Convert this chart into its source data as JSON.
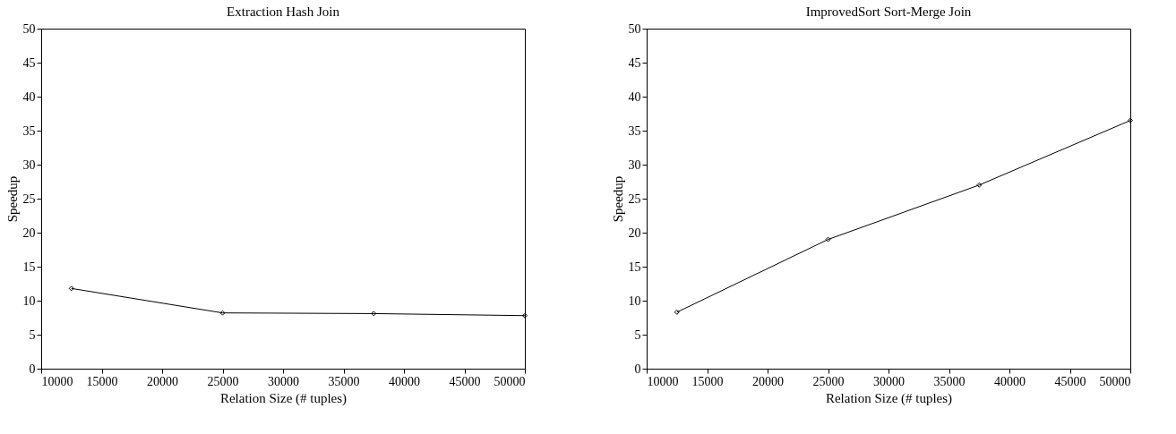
{
  "chart_data": [
    {
      "type": "line",
      "title": "Extraction Hash Join",
      "xlabel": "Relation Size (# tuples)",
      "ylabel": "Speedup",
      "x": [
        12500,
        25000,
        37500,
        50000
      ],
      "series": [
        {
          "color": "#000000",
          "values": [
            11.8,
            8.2,
            8.1,
            7.8
          ]
        }
      ],
      "xlim": [
        10000,
        50000
      ],
      "xticks": [
        10000,
        15000,
        20000,
        25000,
        30000,
        35000,
        40000,
        45000,
        50000
      ],
      "ylim": [
        0,
        50
      ],
      "yticks": [
        0,
        5,
        10,
        15,
        20,
        25,
        30,
        35,
        40,
        45,
        50
      ],
      "grid": false,
      "legend": false,
      "marker": "diamond",
      "line_style": "solid"
    },
    {
      "type": "line",
      "title": "ImprovedSort Sort-Merge Join",
      "xlabel": "Relation Size (# tuples)",
      "ylabel": "Speedup",
      "x": [
        12500,
        25000,
        37500,
        50000
      ],
      "series": [
        {
          "color": "#000000",
          "values": [
            8.3,
            19.0,
            27.0,
            36.5
          ]
        }
      ],
      "xlim": [
        10000,
        50000
      ],
      "xticks": [
        10000,
        15000,
        20000,
        25000,
        30000,
        35000,
        40000,
        45000,
        50000
      ],
      "ylim": [
        0,
        50
      ],
      "yticks": [
        0,
        5,
        10,
        15,
        20,
        25,
        30,
        35,
        40,
        45,
        50
      ],
      "grid": false,
      "legend": false,
      "marker": "diamond",
      "line_style": "solid"
    }
  ]
}
